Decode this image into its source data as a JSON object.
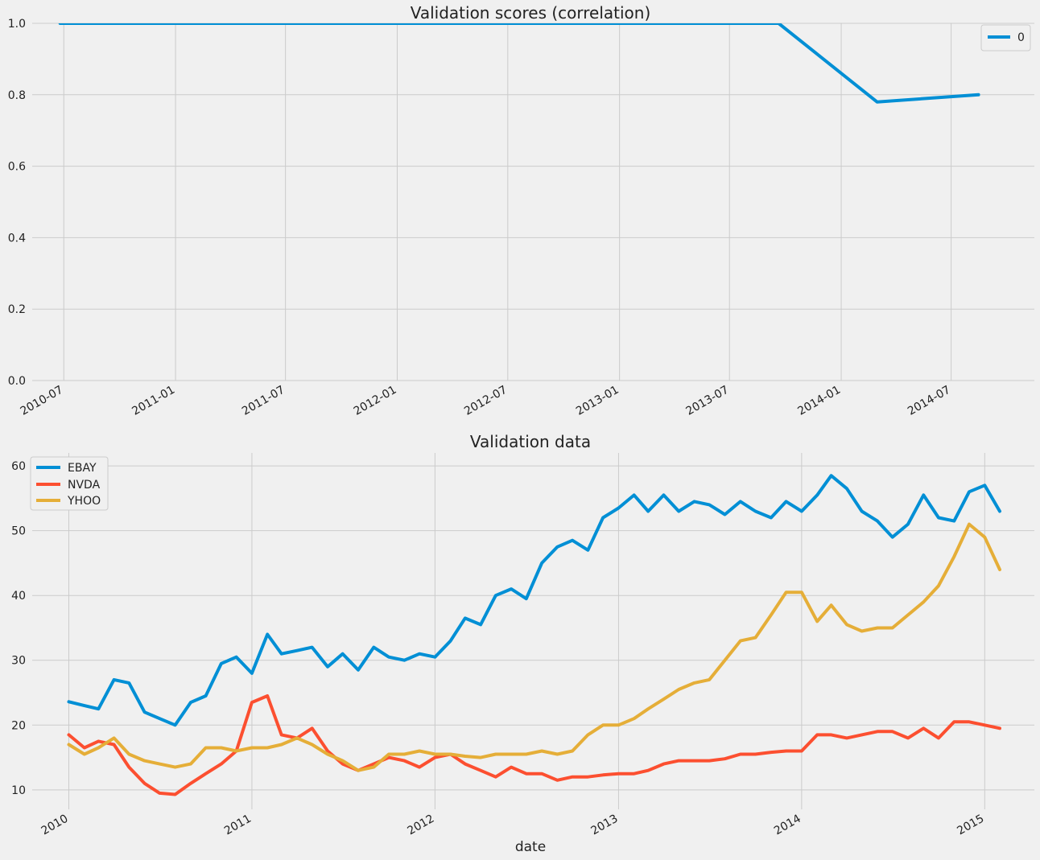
{
  "colors": {
    "background": "#f0f0f0",
    "grid": "#cbcbcb",
    "series_0": "#008fd5",
    "ebay": "#008fd5",
    "nvda": "#fc4f30",
    "yhoo": "#e5ae38"
  },
  "chart_data": [
    {
      "type": "line",
      "title": "Validation scores (correlation)",
      "xlabel": "",
      "ylabel": "",
      "x_type": "date",
      "xlim": [
        "2010-05-10",
        "2014-11-15"
      ],
      "ylim": [
        0,
        1.0
      ],
      "yticks": [
        0,
        0.2,
        0.4,
        0.6,
        0.8,
        1.0
      ],
      "ytick_labels": [
        "0.0",
        "0.2",
        "0.4",
        "0.6",
        "0.8",
        "1.0"
      ],
      "xticks": [
        "2010-07-01",
        "2011-01-01",
        "2011-07-01",
        "2012-01-01",
        "2012-07-01",
        "2013-01-01",
        "2013-07-01",
        "2014-01-01",
        "2014-07-01"
      ],
      "xtick_labels": [
        "2010-07",
        "2011-01",
        "2011-07",
        "2012-01",
        "2012-07",
        "2013-01",
        "2013-07",
        "2014-01",
        "2014-07"
      ],
      "legend_position": "top-right",
      "grid": true,
      "series": [
        {
          "name": "0",
          "color": "#008fd5",
          "x": [
            "2010-06-25",
            "2011-01-01",
            "2011-07-01",
            "2012-01-01",
            "2012-07-01",
            "2013-01-01",
            "2013-07-01",
            "2013-09-20",
            "2014-03-01",
            "2014-08-15"
          ],
          "y": [
            1.0,
            1.0,
            1.0,
            1.0,
            1.0,
            1.0,
            1.0,
            1.0,
            0.78,
            0.8
          ]
        }
      ]
    },
    {
      "type": "line",
      "title": "Validation data",
      "xlabel": "date",
      "ylabel": "",
      "x_type": "date",
      "xlim": [
        "2009-10-20",
        "2015-04-10"
      ],
      "ylim": [
        7,
        62
      ],
      "yticks": [
        10,
        20,
        30,
        40,
        50,
        60
      ],
      "ytick_labels": [
        "10",
        "20",
        "30",
        "40",
        "50",
        "60"
      ],
      "xticks": [
        "2010-01-01",
        "2011-01-01",
        "2012-01-01",
        "2013-01-01",
        "2014-01-01",
        "2015-01-01"
      ],
      "xtick_labels": [
        "2010",
        "2011",
        "2012",
        "2013",
        "2014",
        "2015"
      ],
      "legend_position": "top-left",
      "grid": true,
      "series": [
        {
          "name": "EBAY",
          "color": "#008fd5",
          "x": [
            "2010-01-01",
            "2010-02-01",
            "2010-03-01",
            "2010-04-01",
            "2010-05-01",
            "2010-06-01",
            "2010-07-01",
            "2010-08-01",
            "2010-09-01",
            "2010-10-01",
            "2010-11-01",
            "2010-12-01",
            "2011-01-01",
            "2011-02-01",
            "2011-03-01",
            "2011-04-01",
            "2011-05-01",
            "2011-06-01",
            "2011-07-01",
            "2011-08-01",
            "2011-09-01",
            "2011-10-01",
            "2011-11-01",
            "2011-12-01",
            "2012-01-01",
            "2012-02-01",
            "2012-03-01",
            "2012-04-01",
            "2012-05-01",
            "2012-06-01",
            "2012-07-01",
            "2012-08-01",
            "2012-09-01",
            "2012-10-01",
            "2012-11-01",
            "2012-12-01",
            "2013-01-01",
            "2013-02-01",
            "2013-03-01",
            "2013-04-01",
            "2013-05-01",
            "2013-06-01",
            "2013-07-01",
            "2013-08-01",
            "2013-09-01",
            "2013-10-01",
            "2013-11-01",
            "2013-12-01",
            "2014-01-01",
            "2014-02-01",
            "2014-03-01",
            "2014-04-01",
            "2014-05-01",
            "2014-06-01",
            "2014-07-01",
            "2014-08-01",
            "2014-09-01",
            "2014-10-01",
            "2014-11-01",
            "2014-12-01",
            "2015-01-01",
            "2015-01-31"
          ],
          "y": [
            23.6,
            23.0,
            22.5,
            27.0,
            26.5,
            22.0,
            21.0,
            20.0,
            23.5,
            24.5,
            29.5,
            30.5,
            28.0,
            34.0,
            31.0,
            31.5,
            32.0,
            29.0,
            31.0,
            28.5,
            32.0,
            30.5,
            30.0,
            31.0,
            30.5,
            33.0,
            36.5,
            35.5,
            40.0,
            41.0,
            39.5,
            45.0,
            47.5,
            48.5,
            47.0,
            52.0,
            53.5,
            55.5,
            53.0,
            55.5,
            53.0,
            54.5,
            54.0,
            52.5,
            54.5,
            53.0,
            52.0,
            54.5,
            53.0,
            55.5,
            58.5,
            56.5,
            53.0,
            51.5,
            49.0,
            51.0,
            55.5,
            52.0,
            51.5,
            56.0,
            57.0,
            53.0
          ]
        },
        {
          "name": "NVDA",
          "color": "#fc4f30",
          "x": [
            "2010-01-01",
            "2010-02-01",
            "2010-03-01",
            "2010-04-01",
            "2010-05-01",
            "2010-06-01",
            "2010-07-01",
            "2010-08-01",
            "2010-09-01",
            "2010-10-01",
            "2010-11-01",
            "2010-12-01",
            "2011-01-01",
            "2011-02-01",
            "2011-03-01",
            "2011-04-01",
            "2011-05-01",
            "2011-06-01",
            "2011-07-01",
            "2011-08-01",
            "2011-09-01",
            "2011-10-01",
            "2011-11-01",
            "2011-12-01",
            "2012-01-01",
            "2012-02-01",
            "2012-03-01",
            "2012-04-01",
            "2012-05-01",
            "2012-06-01",
            "2012-07-01",
            "2012-08-01",
            "2012-09-01",
            "2012-10-01",
            "2012-11-01",
            "2012-12-01",
            "2013-01-01",
            "2013-02-01",
            "2013-03-01",
            "2013-04-01",
            "2013-05-01",
            "2013-06-01",
            "2013-07-01",
            "2013-08-01",
            "2013-09-01",
            "2013-10-01",
            "2013-11-01",
            "2013-12-01",
            "2014-01-01",
            "2014-02-01",
            "2014-03-01",
            "2014-04-01",
            "2014-05-01",
            "2014-06-01",
            "2014-07-01",
            "2014-08-01",
            "2014-09-01",
            "2014-10-01",
            "2014-11-01",
            "2014-12-01",
            "2015-01-01",
            "2015-01-31"
          ],
          "y": [
            18.5,
            16.5,
            17.5,
            17.0,
            13.5,
            11.0,
            9.5,
            9.3,
            11.0,
            12.5,
            14.0,
            16.0,
            23.5,
            24.5,
            18.5,
            18.0,
            19.5,
            16.0,
            14.0,
            13.0,
            14.0,
            15.0,
            14.5,
            13.5,
            15.0,
            15.5,
            14.0,
            13.0,
            12.0,
            13.5,
            12.5,
            12.5,
            11.5,
            12.0,
            12.0,
            12.3,
            12.5,
            12.5,
            13.0,
            14.0,
            14.5,
            14.5,
            14.5,
            14.8,
            15.5,
            15.5,
            15.8,
            16.0,
            16.0,
            18.5,
            18.5,
            18.0,
            18.5,
            19.0,
            19.0,
            18.0,
            19.5,
            18.0,
            20.5,
            20.5,
            20.0,
            19.5
          ]
        },
        {
          "name": "YHOO",
          "color": "#e5ae38",
          "x": [
            "2010-01-01",
            "2010-02-01",
            "2010-03-01",
            "2010-04-01",
            "2010-05-01",
            "2010-06-01",
            "2010-07-01",
            "2010-08-01",
            "2010-09-01",
            "2010-10-01",
            "2010-11-01",
            "2010-12-01",
            "2011-01-01",
            "2011-02-01",
            "2011-03-01",
            "2011-04-01",
            "2011-05-01",
            "2011-06-01",
            "2011-07-01",
            "2011-08-01",
            "2011-09-01",
            "2011-10-01",
            "2011-11-01",
            "2011-12-01",
            "2012-01-01",
            "2012-02-01",
            "2012-03-01",
            "2012-04-01",
            "2012-05-01",
            "2012-06-01",
            "2012-07-01",
            "2012-08-01",
            "2012-09-01",
            "2012-10-01",
            "2012-11-01",
            "2012-12-01",
            "2013-01-01",
            "2013-02-01",
            "2013-03-01",
            "2013-04-01",
            "2013-05-01",
            "2013-06-01",
            "2013-07-01",
            "2013-08-01",
            "2013-09-01",
            "2013-10-01",
            "2013-11-01",
            "2013-12-01",
            "2014-01-01",
            "2014-02-01",
            "2014-03-01",
            "2014-04-01",
            "2014-05-01",
            "2014-06-01",
            "2014-07-01",
            "2014-08-01",
            "2014-09-01",
            "2014-10-01",
            "2014-11-01",
            "2014-12-01",
            "2015-01-01",
            "2015-01-31"
          ],
          "y": [
            17.0,
            15.5,
            16.5,
            18.0,
            15.5,
            14.5,
            14.0,
            13.5,
            14.0,
            16.5,
            16.5,
            16.0,
            16.5,
            16.5,
            17.0,
            18.0,
            17.0,
            15.5,
            14.5,
            13.0,
            13.5,
            15.5,
            15.5,
            16.0,
            15.5,
            15.5,
            15.2,
            15.0,
            15.5,
            15.5,
            15.5,
            16.0,
            15.5,
            16.0,
            18.5,
            20.0,
            20.0,
            21.0,
            22.5,
            24.0,
            25.5,
            26.5,
            27.0,
            30.0,
            33.0,
            33.5,
            37.0,
            40.5,
            40.5,
            36.0,
            38.5,
            35.5,
            34.5,
            35.0,
            35.0,
            37.0,
            39.0,
            41.5,
            46.0,
            51.0,
            49.0,
            44.0
          ]
        }
      ]
    }
  ]
}
